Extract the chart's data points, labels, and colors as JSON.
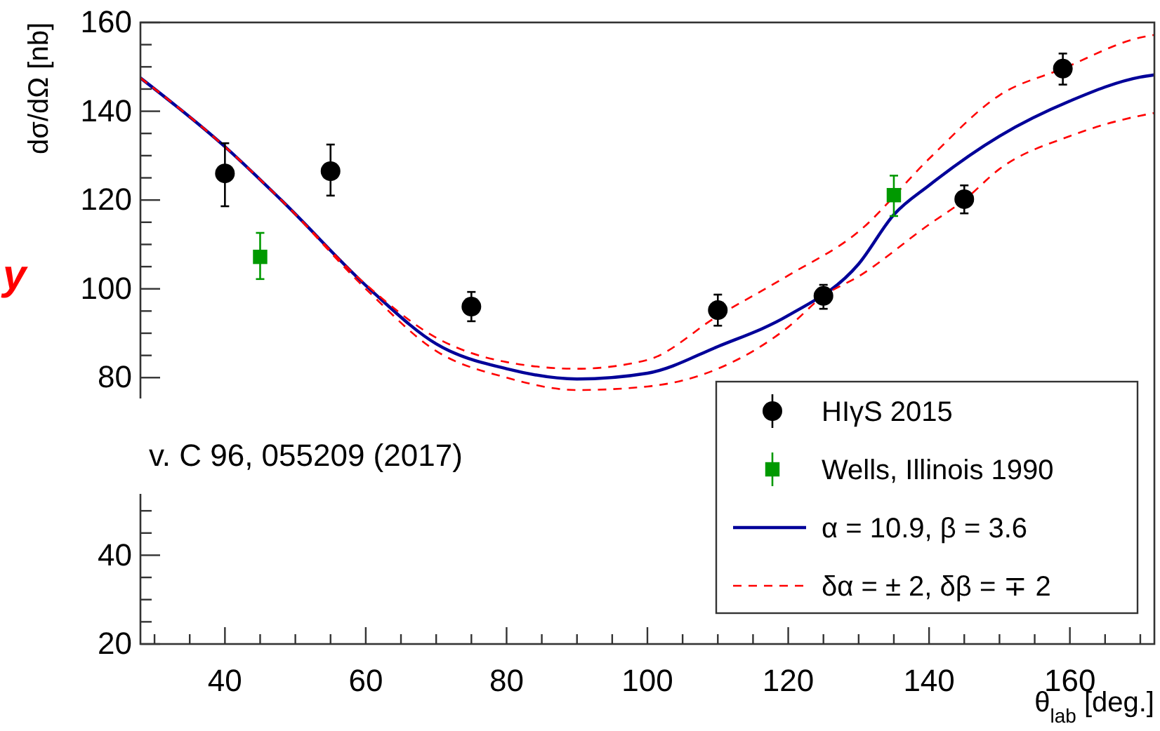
{
  "chart_data": {
    "type": "scatter",
    "xlabel": "θ$_{lab}$ [deg.]",
    "ylabel": "dσ/dΩ [nb]",
    "xlim": [
      28,
      172
    ],
    "ylim": [
      20,
      160
    ],
    "xticks": [
      {
        "value": 30,
        "label": null
      },
      {
        "value": 35,
        "label": null
      },
      40,
      {
        "value": 45,
        "label": null
      },
      {
        "value": 50,
        "label": null
      },
      {
        "value": 55,
        "label": null
      },
      60,
      {
        "value": 65,
        "label": null
      },
      {
        "value": 70,
        "label": null
      },
      {
        "value": 75,
        "label": null
      },
      80,
      {
        "value": 85,
        "label": null
      },
      {
        "value": 90,
        "label": null
      },
      {
        "value": 95,
        "label": null
      },
      100,
      {
        "value": 105,
        "label": null
      },
      {
        "value": 110,
        "label": null
      },
      {
        "value": 115,
        "label": null
      },
      120,
      {
        "value": 125,
        "label": null
      },
      {
        "value": 130,
        "label": null
      },
      {
        "value": 135,
        "label": null
      },
      140,
      {
        "value": 145,
        "label": null
      },
      {
        "value": 150,
        "label": null
      },
      {
        "value": 155,
        "label": null
      },
      160,
      {
        "value": 165,
        "label": null
      },
      {
        "value": 170,
        "label": null
      }
    ],
    "yticks": [
      20,
      {
        "value": 25,
        "label": null
      },
      {
        "value": 30,
        "label": null
      },
      {
        "value": 35,
        "label": null
      },
      40,
      {
        "value": 45,
        "label": null
      },
      {
        "value": 50,
        "label": null
      },
      {
        "value": 75,
        "label": null
      },
      80,
      {
        "value": 85,
        "label": null
      },
      {
        "value": 90,
        "label": null
      },
      {
        "value": 95,
        "label": null
      },
      100,
      {
        "value": 105,
        "label": null
      },
      {
        "value": 110,
        "label": null
      },
      {
        "value": 115,
        "label": null
      },
      120,
      {
        "value": 125,
        "label": null
      },
      {
        "value": 130,
        "label": null
      },
      {
        "value": 135,
        "label": null
      },
      140,
      {
        "value": 145,
        "label": null
      },
      {
        "value": 150,
        "label": null
      },
      {
        "value": 155,
        "label": null
      },
      160
    ],
    "grid": false,
    "legend": "bottom right",
    "annotations": [
      "y",
      "v. C 96, 055209 (2017)"
    ],
    "series": [
      {
        "name": "HIγS 2015",
        "marker": "circle",
        "color": "#000000",
        "x": [
          40,
          55,
          75,
          110,
          125,
          145,
          159
        ],
        "values": [
          126,
          126.5,
          96,
          95.2,
          98.4,
          120.2,
          149.6
        ],
        "errors": [
          [
            118.6,
            132.8
          ],
          [
            121,
            132.5
          ],
          [
            92.7,
            99.3
          ],
          [
            91.7,
            98.7
          ],
          [
            95.5,
            100.9
          ],
          [
            117,
            123.3
          ],
          [
            146,
            153
          ]
        ]
      },
      {
        "name": "Wells, Illinois 1990",
        "marker": "square",
        "color": "#009900",
        "x": [
          45,
          135
        ],
        "values": [
          107.2,
          121.1
        ],
        "errors": [
          [
            102.2,
            112.6
          ],
          [
            116.4,
            125.5
          ]
        ]
      },
      {
        "name": "α = 10.9, β = 3.6",
        "type": "line",
        "marker": "none",
        "line_style": "solid",
        "color": "#000099",
        "x": [
          28,
          40,
          48,
          61,
          70,
          80,
          90,
          100,
          110,
          120,
          130,
          135,
          140,
          150,
          160,
          170,
          172
        ],
        "values": [
          147.5,
          132,
          120,
          99.3,
          87.6,
          82,
          79.7,
          81,
          87,
          94,
          105.6,
          116.7,
          123.3,
          134.4,
          142.3,
          147.7,
          148.2
        ]
      },
      {
        "name": "δα = ± 2, δβ = ∓ 2",
        "type": "line",
        "marker": "none",
        "line_style": "dashed",
        "color": "#ff0000",
        "x": [
          28,
          40,
          48,
          60,
          70,
          80,
          90,
          100,
          110,
          120,
          130,
          140,
          150,
          159,
          170,
          172
        ],
        "values": [
          147.5,
          132,
          120,
          101,
          89,
          83.5,
          82,
          84,
          93.9,
          103,
          112.9,
          129.3,
          143.6,
          149.6,
          156.6,
          157.2
        ]
      },
      {
        "type": "line",
        "marker": "none",
        "line_style": "dashed",
        "color": "#ff0000",
        "x": [
          28,
          40,
          48,
          60,
          70,
          80,
          90,
          100,
          110,
          120,
          125,
          130,
          140,
          145,
          150,
          160,
          170,
          172
        ],
        "values": [
          147.5,
          132,
          120,
          100,
          86,
          80,
          77.2,
          78,
          82,
          91.4,
          98.4,
          102.8,
          114.5,
          120,
          127,
          134.4,
          139,
          139.6
        ]
      }
    ]
  }
}
